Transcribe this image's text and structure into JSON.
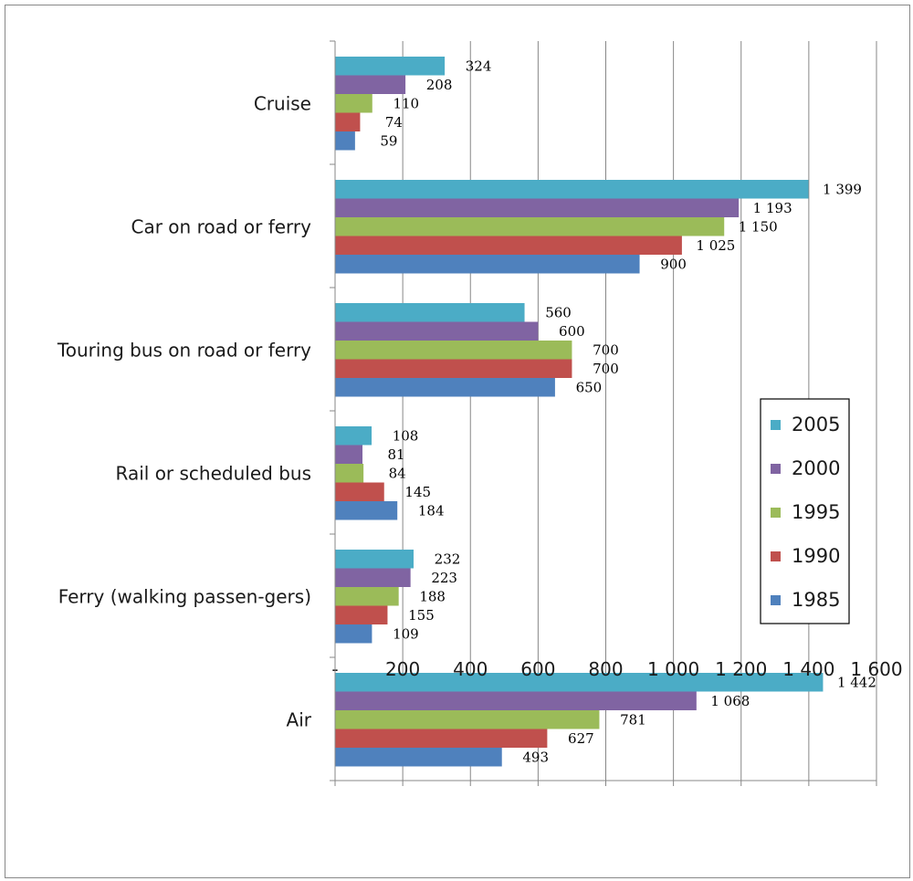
{
  "chart_data": {
    "type": "bar",
    "orientation": "horizontal",
    "title": "",
    "xlabel": "",
    "ylabel": "",
    "xlim": [
      0,
      1600
    ],
    "x_ticks": [
      0,
      200,
      400,
      600,
      800,
      1000,
      1200,
      1400,
      1600
    ],
    "x_tick_labels": [
      "-",
      "200",
      "400",
      "600",
      "800",
      "1 000",
      "1 200",
      "1 400",
      "1 600"
    ],
    "grid": "vertical",
    "legend_position": "right",
    "categories": [
      "Cruise",
      "Car on road or ferry",
      "Touring bus on road or ferry",
      "Rail or scheduled bus",
      "Ferry (walking passen-gers)",
      "Air"
    ],
    "series": [
      {
        "name": "2005",
        "color": "#4BACC6",
        "values": [
          324,
          1399,
          560,
          108,
          232,
          1442
        ],
        "labels": [
          "324",
          "1 399",
          "560",
          "108",
          "232",
          "1 442"
        ]
      },
      {
        "name": "2000",
        "color": "#8064A2",
        "values": [
          208,
          1193,
          600,
          81,
          223,
          1068
        ],
        "labels": [
          "208",
          "1 193",
          "600",
          "81",
          "223",
          "1 068"
        ]
      },
      {
        "name": "1995",
        "color": "#9BBB59",
        "values": [
          110,
          1150,
          700,
          84,
          188,
          781
        ],
        "labels": [
          "110",
          "1 150",
          "700",
          "84",
          "188",
          "781"
        ]
      },
      {
        "name": "1990",
        "color": "#C0504D",
        "values": [
          74,
          1025,
          700,
          145,
          155,
          627
        ],
        "labels": [
          "74",
          "1 025",
          "700",
          "145",
          "155",
          "627"
        ]
      },
      {
        "name": "1985",
        "color": "#4F81BD",
        "values": [
          59,
          900,
          650,
          184,
          109,
          493
        ],
        "labels": [
          "59",
          "900",
          "650",
          "184",
          "109",
          "493"
        ]
      }
    ]
  }
}
